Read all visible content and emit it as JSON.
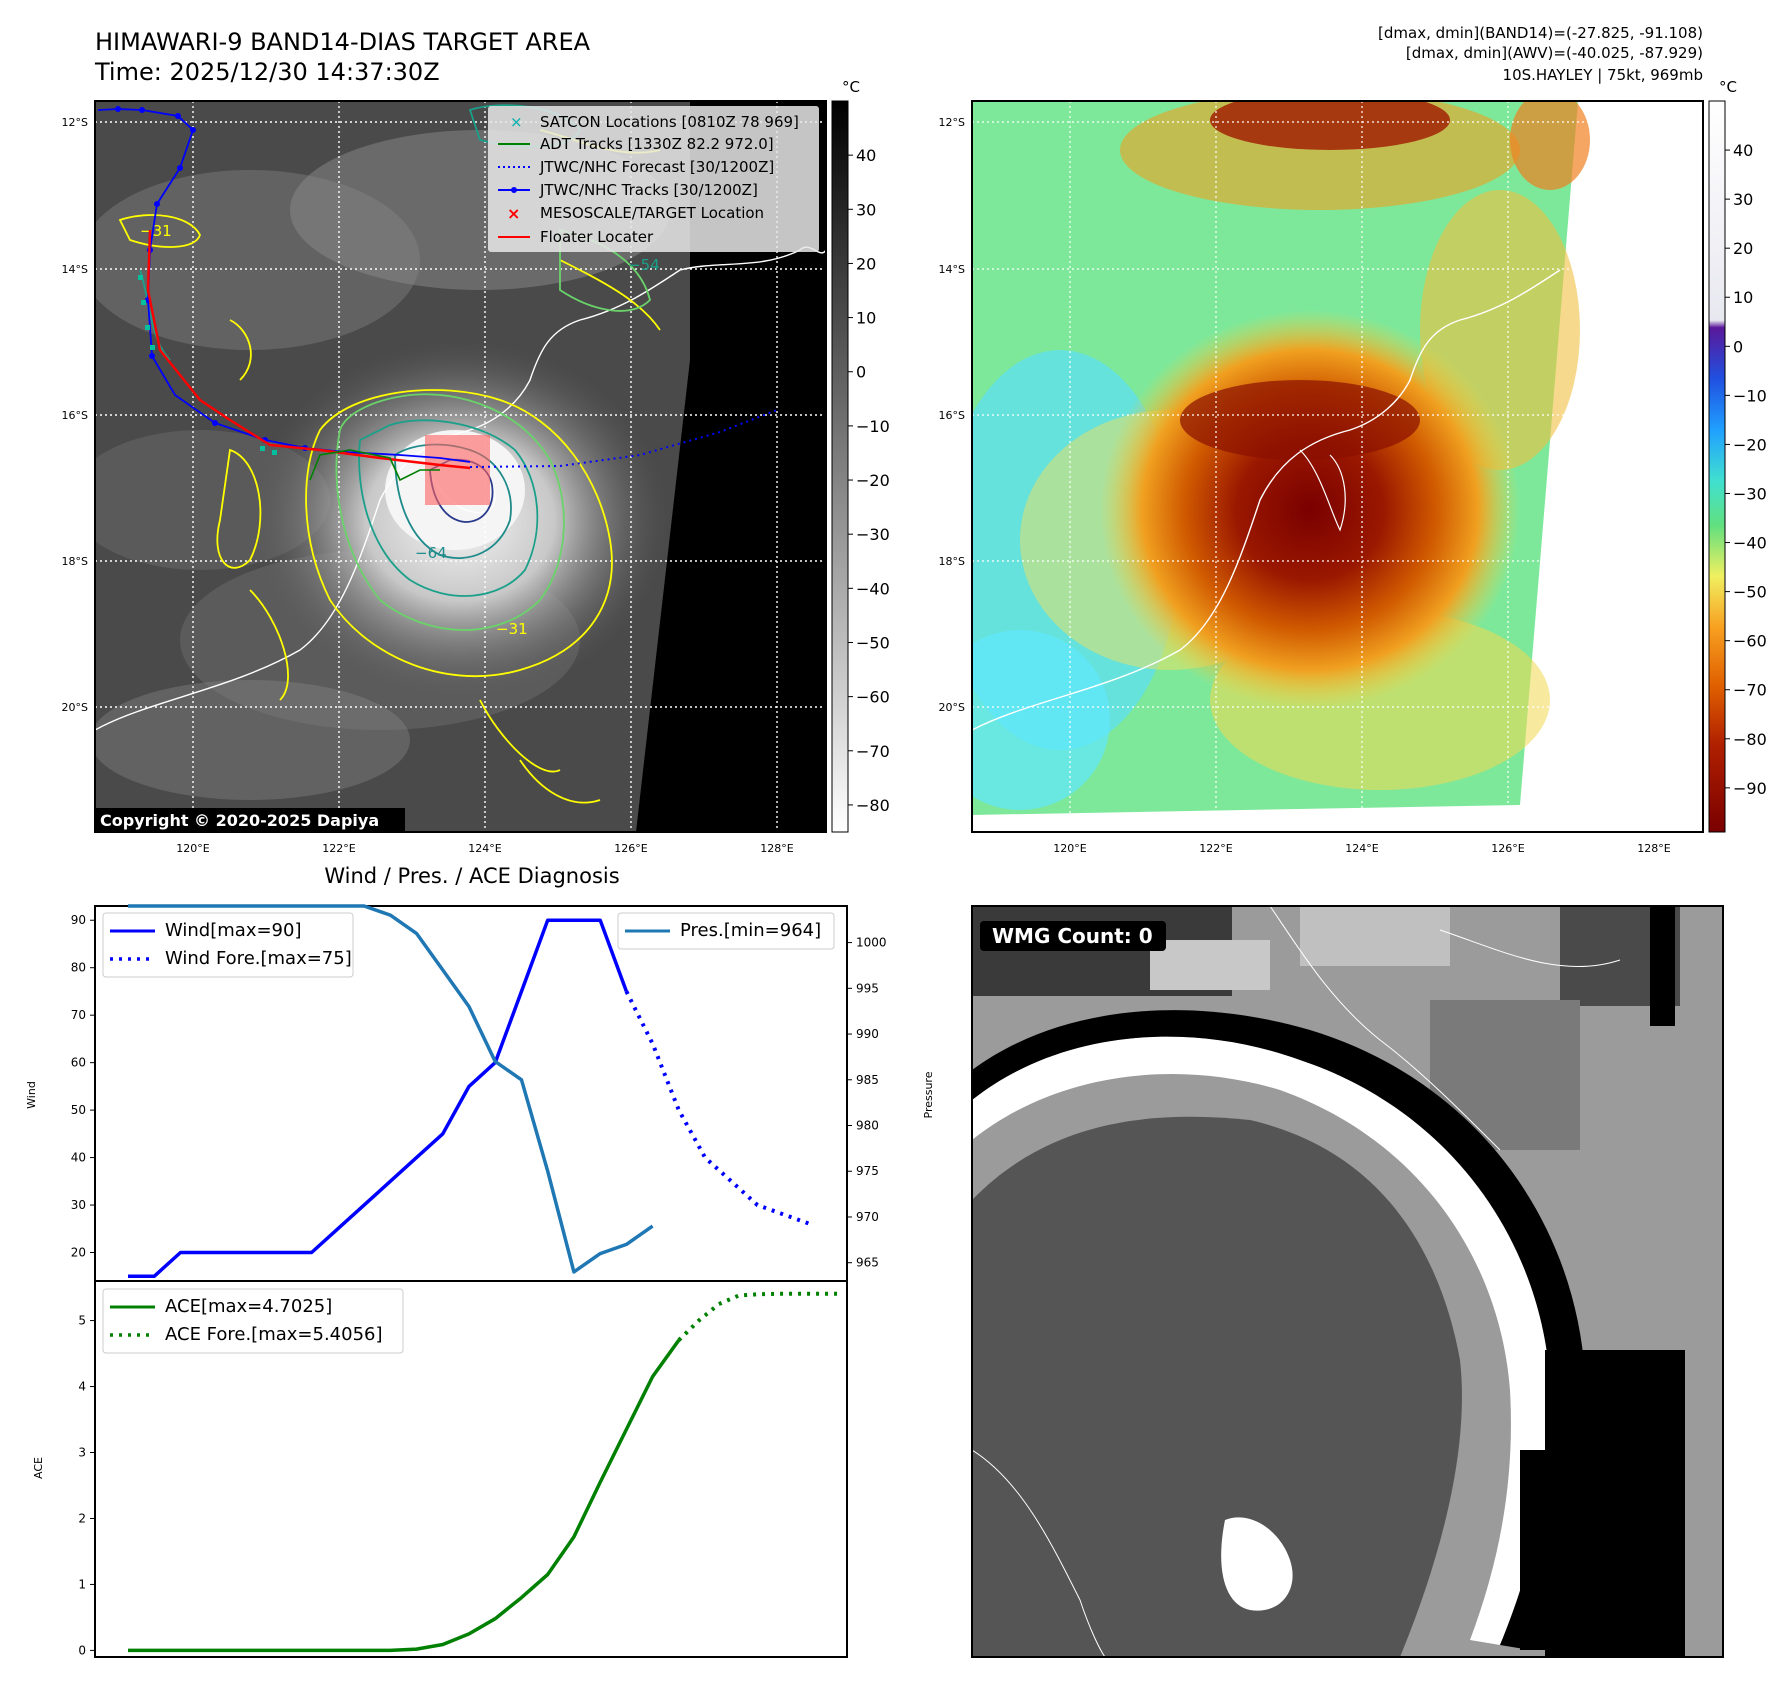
{
  "header": {
    "title": "HIMAWARI-9 BAND14-DIAS TARGET AREA",
    "time": "Time: 2025/12/30 14:37:30Z",
    "info_line1": "[dmax, dmin](BAND14)=(-27.825, -91.108)",
    "info_line2": "[dmax, dmin](AWV)=(-40.025, -87.929)",
    "info_line3": "10S.HAYLEY | 75kt, 969mb"
  },
  "map": {
    "lat_labels": [
      "12°S",
      "14°S",
      "16°S",
      "18°S",
      "20°S"
    ],
    "lon_labels": [
      "120°E",
      "122°E",
      "124°E",
      "126°E",
      "128°E"
    ],
    "copyright": "Copyright © 2020-2025 Dapiya",
    "contour_labels": [
      "−31",
      "−54",
      "−64",
      "−31"
    ],
    "legend": [
      "SATCON Locations [0810Z 78 969]",
      "ADT Tracks [1330Z 82.2 972.0]",
      "JTWC/NHC Forecast [30/1200Z]",
      "JTWC/NHC Tracks [30/1200Z]",
      "MESOSCALE/TARGET Location",
      "Floater Locater"
    ]
  },
  "colorbar_gray": {
    "unit": "°C",
    "ticks": [
      "40",
      "30",
      "20",
      "10",
      "0",
      "−10",
      "−20",
      "−30",
      "−40",
      "−50",
      "−60",
      "−70",
      "−80"
    ]
  },
  "colorbar_awv": {
    "unit": "°C",
    "ticks": [
      "40",
      "30",
      "20",
      "10",
      "0",
      "−10",
      "−20",
      "−30",
      "−40",
      "−50",
      "−60",
      "−70",
      "−80",
      "−90"
    ]
  },
  "wmg": {
    "label": "WMG Count: 0"
  },
  "diag": {
    "title": "Wind / Pres. / ACE Diagnosis"
  },
  "chart_data": [
    {
      "type": "line",
      "title": "Wind / Pres. / ACE Diagnosis",
      "ylabel": "Wind",
      "ylim": [
        14,
        93
      ],
      "yticks": [
        "90",
        "80",
        "70",
        "60",
        "50",
        "40",
        "30",
        "20"
      ],
      "x": [
        0,
        1,
        2,
        3,
        4,
        5,
        6,
        7,
        8,
        9,
        10,
        11,
        12,
        13,
        14,
        15,
        16,
        17,
        18,
        19,
        20,
        21,
        22,
        23,
        24,
        25,
        26
      ],
      "series": [
        {
          "name": "Wind[max=90]",
          "color": "#0000ff",
          "style": "solid",
          "values": [
            15,
            15,
            20,
            20,
            20,
            20,
            20,
            20,
            25,
            30,
            35,
            40,
            45,
            55,
            60,
            75,
            90,
            90,
            90,
            75,
            null,
            null,
            null,
            null,
            null,
            null,
            null
          ]
        },
        {
          "name": "Wind Fore.[max=75]",
          "color": "#0000ff",
          "style": "dotted",
          "values": [
            null,
            null,
            null,
            null,
            null,
            null,
            null,
            null,
            null,
            null,
            null,
            null,
            null,
            null,
            null,
            null,
            null,
            null,
            null,
            75,
            64,
            50,
            40,
            35,
            30,
            28,
            26
          ]
        }
      ]
    },
    {
      "type": "line",
      "ylabel": "Pressure",
      "ylim": [
        963,
        1004
      ],
      "yticks": [
        "1000",
        "995",
        "990",
        "985",
        "980",
        "975",
        "970",
        "965"
      ],
      "series": [
        {
          "name": "Pres.[min=964]",
          "color": "#1f77b4",
          "style": "solid",
          "values": [
            1004,
            1004,
            1004,
            1004,
            1004,
            1004,
            1004,
            1004,
            1004,
            1004,
            1003,
            1001,
            997,
            993,
            987,
            985,
            975,
            964,
            966,
            967,
            969
          ]
        }
      ]
    },
    {
      "type": "line",
      "ylabel": "ACE",
      "ylim": [
        -0.1,
        5.6
      ],
      "yticks": [
        "5",
        "4",
        "3",
        "2",
        "1",
        "0"
      ],
      "series": [
        {
          "name": "ACE[max=4.7025]",
          "color": "#008000",
          "style": "solid",
          "values": [
            0,
            0,
            0,
            0,
            0,
            0,
            0,
            0,
            0,
            0,
            0,
            0.02,
            0.09,
            0.25,
            0.48,
            0.8,
            1.15,
            1.72,
            2.55,
            3.35,
            4.15,
            4.7025
          ]
        },
        {
          "name": "ACE Fore.[max=5.4056]",
          "color": "#008000",
          "style": "dotted",
          "values": [
            4.7025,
            5.0,
            5.25,
            5.38,
            5.4,
            5.4056,
            5.4056,
            5.4056,
            5.4056
          ]
        }
      ]
    }
  ]
}
